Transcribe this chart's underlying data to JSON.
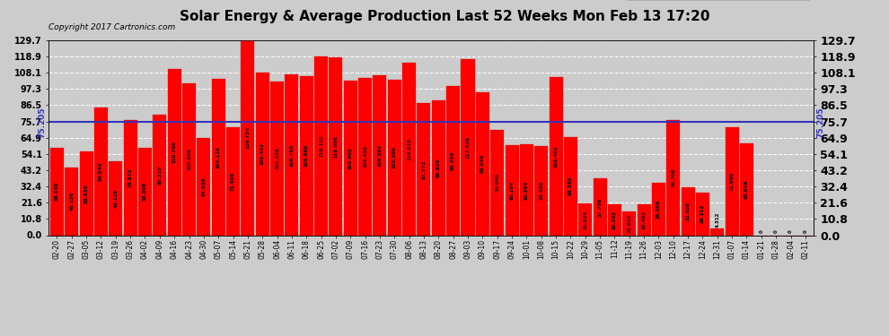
{
  "title": "Solar Energy & Average Production Last 52 Weeks Mon Feb 13 17:20",
  "copyright": "Copyright 2017 Cartronics.com",
  "average": 75.205,
  "ytick_values": [
    0.0,
    10.8,
    21.6,
    32.4,
    43.2,
    54.1,
    64.9,
    75.7,
    86.5,
    97.3,
    108.1,
    118.9,
    129.7
  ],
  "bar_color": "#ff0000",
  "avg_line_color": "#3333bb",
  "bg_color": "#cccccc",
  "categories": [
    "02-20",
    "02-27",
    "03-05",
    "03-12",
    "03-19",
    "03-26",
    "04-02",
    "04-09",
    "04-16",
    "04-23",
    "04-30",
    "05-07",
    "05-14",
    "05-21",
    "05-28",
    "06-04",
    "06-11",
    "06-18",
    "06-25",
    "07-02",
    "07-09",
    "07-16",
    "07-23",
    "07-30",
    "08-06",
    "08-13",
    "08-20",
    "08-27",
    "09-03",
    "09-10",
    "09-17",
    "09-24",
    "10-01",
    "10-08",
    "10-15",
    "10-22",
    "10-29",
    "11-05",
    "11-12",
    "11-19",
    "11-26",
    "12-03",
    "12-10",
    "12-17",
    "12-24",
    "12-31",
    "01-07",
    "01-14",
    "01-21",
    "01-28",
    "02-04",
    "02-11"
  ],
  "values": [
    58.15,
    45.136,
    55.536,
    84.944,
    49.128,
    76.872,
    58.008,
    80.31,
    110.79,
    100.906,
    64.858,
    104.118,
    71.606,
    129.734,
    108.442,
    102.358,
    106.766,
    105.668,
    119.102,
    118.098,
    102.902,
    104.456,
    106.592,
    103.506,
    114.816,
    87.772,
    89.926,
    99.036,
    117.426,
    95.04,
    70.04,
    60.164,
    60.394,
    59.58,
    105.402,
    65.388,
    20.934,
    37.796,
    20.302,
    15.81,
    20.402,
    35.008,
    76.708,
    32.026,
    28.312,
    4.312,
    71.66,
    60.946,
    0.0,
    0.0,
    0.0,
    0.0
  ],
  "avg_text": "75.205",
  "legend_avg_color": "#2222cc",
  "legend_weekly_color": "#ff0000"
}
